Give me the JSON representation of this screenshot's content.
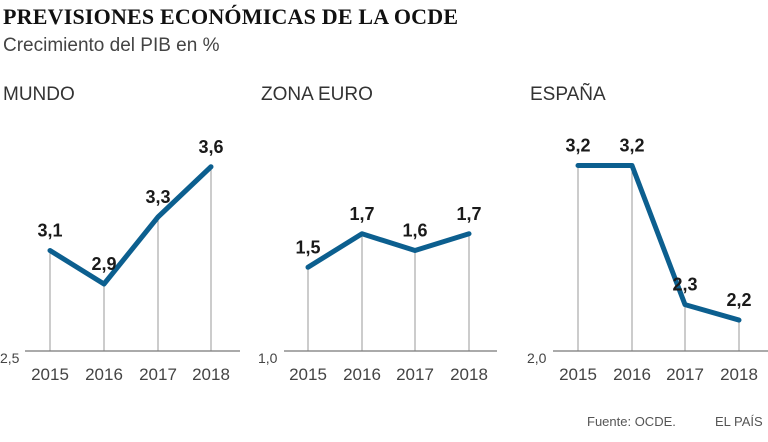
{
  "header": {
    "title": "PREVISIONES ECONÓMICAS DE LA OCDE",
    "subtitle": "Crecimiento del PIB en %"
  },
  "footer": {
    "source": "Fuente: OCDE.",
    "brand": "EL PAÍS"
  },
  "colors": {
    "line": "#0c5f8f",
    "gridline": "#9a9a9a",
    "axis": "#777777"
  },
  "chart_data": [
    {
      "type": "line",
      "title": "MUNDO",
      "categories": [
        "2015",
        "2016",
        "2017",
        "2018"
      ],
      "values": [
        3.1,
        2.9,
        3.3,
        3.6
      ],
      "labels": [
        "3,1",
        "2,9",
        "3,3",
        "3,6"
      ],
      "ymin_label": "2,5",
      "ylim": [
        2.5,
        3.7
      ],
      "xlabel": "",
      "ylabel": "",
      "grid": false
    },
    {
      "type": "line",
      "title": "ZONA EURO",
      "categories": [
        "2015",
        "2016",
        "2017",
        "2018"
      ],
      "values": [
        1.5,
        1.7,
        1.6,
        1.7
      ],
      "labels": [
        "1,5",
        "1,7",
        "1,6",
        "1,7"
      ],
      "ymin_label": "1,0",
      "ylim": [
        1.0,
        2.2
      ],
      "xlabel": "",
      "ylabel": "",
      "grid": false
    },
    {
      "type": "line",
      "title": "ESPAÑA",
      "categories": [
        "2015",
        "2016",
        "2017",
        "2018"
      ],
      "values": [
        3.2,
        3.2,
        2.3,
        2.2
      ],
      "labels": [
        "3,2",
        "3,2",
        "2,3",
        "2,2"
      ],
      "ymin_label": "2,0",
      "ylim": [
        2.0,
        3.3
      ],
      "xlabel": "",
      "ylabel": "",
      "grid": false
    }
  ]
}
